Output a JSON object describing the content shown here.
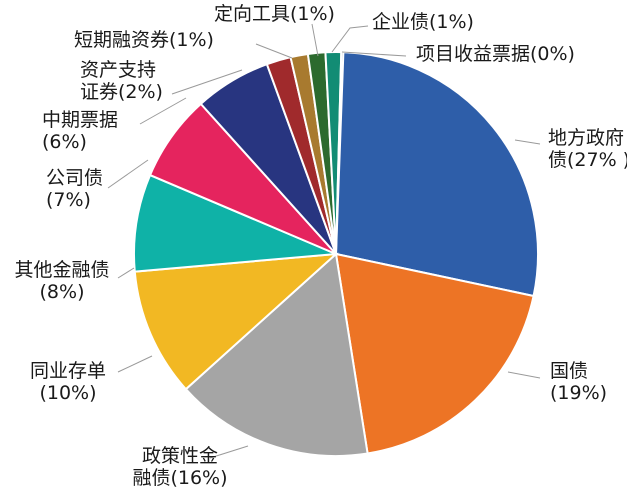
{
  "chart_data": {
    "type": "pie",
    "title": "",
    "start_angle_deg": 0,
    "direction": "clockwise",
    "slices": [
      {
        "name": "地方政府债",
        "value": 27,
        "label_lines": [
          "地方政府",
          "债(27% )"
        ],
        "color": "#2e5ea9"
      },
      {
        "name": "国债",
        "value": 19,
        "label_lines": [
          "国债",
          "(19%)"
        ],
        "color": "#ed7425"
      },
      {
        "name": "政策性金融债",
        "value": 16,
        "label_lines": [
          "政策性金",
          "融债(16%)"
        ],
        "color": "#a5a5a5"
      },
      {
        "name": "同业存单",
        "value": 10,
        "label_lines": [
          "同业存单",
          "(10%)"
        ],
        "color": "#f2b823"
      },
      {
        "name": "其他金融债",
        "value": 8,
        "label_lines": [
          "其他金融债",
          "(8%)"
        ],
        "color": "#0fb2a7"
      },
      {
        "name": "公司债",
        "value": 7,
        "label_lines": [
          "公司债",
          "(7%)"
        ],
        "color": "#e5245e"
      },
      {
        "name": "中期票据",
        "value": 6,
        "label_lines": [
          "中期票据",
          "(6%)"
        ],
        "color": "#283580"
      },
      {
        "name": "资产支持证券",
        "value": 2,
        "label_lines": [
          "资产支持",
          "证券(2%)"
        ],
        "color": "#a02a2c"
      },
      {
        "name": "短期融资券",
        "value": 1,
        "label_lines": [
          "短期融资券(1%)"
        ],
        "color": "#a87a2f"
      },
      {
        "name": "定向工具",
        "value": 1,
        "label_lines": [
          "定向工具(1%)"
        ],
        "color": "#2c6a2e"
      },
      {
        "name": "企业债",
        "value": 1,
        "label_lines": [
          "企业债(1%)"
        ],
        "color": "#128c74"
      },
      {
        "name": "项目收益票据",
        "value": 0,
        "label_lines": [
          "项目收益票据(0%)"
        ],
        "color": "#12496e"
      }
    ]
  }
}
